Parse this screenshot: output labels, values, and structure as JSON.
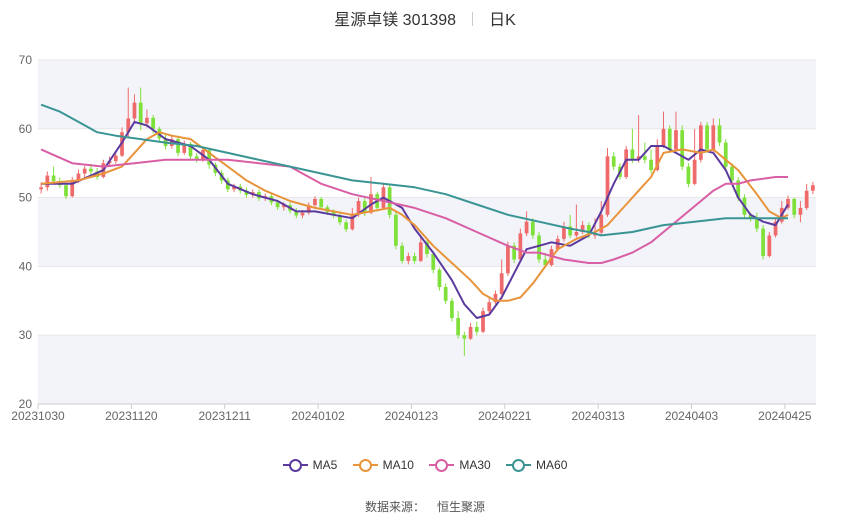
{
  "title": {
    "name": "星源卓镁 301398",
    "period": "日K"
  },
  "source": {
    "label": "数据来源：",
    "provider": "恒生聚源"
  },
  "colors": {
    "up": "#ef6b6b",
    "down": "#7fe03a",
    "MA5": "#5b3a9e",
    "MA10": "#e8943a",
    "MA30": "#d85ea5",
    "MA60": "#3a9494",
    "band": "#f3f4fa",
    "grid": "#e6e6e6"
  },
  "chart_data": {
    "type": "candlestick",
    "ylim": [
      20,
      70
    ],
    "yticks": [
      20,
      30,
      40,
      50,
      60,
      70
    ],
    "xticks": [
      "20231030",
      "20231120",
      "20231211",
      "20240102",
      "20240123",
      "20240221",
      "20240313",
      "20240403",
      "20240425"
    ],
    "xtick_index": [
      0,
      15,
      30,
      45,
      60,
      75,
      90,
      105,
      120
    ],
    "legend": [
      "MA5",
      "MA10",
      "MA30",
      "MA60"
    ],
    "legend_position": "bottom",
    "candles": [
      [
        51.2,
        51.5,
        50.6,
        52.2
      ],
      [
        51.5,
        53.2,
        51.0,
        53.8
      ],
      [
        53.2,
        52.4,
        52.0,
        54.5
      ],
      [
        52.4,
        51.8,
        51.4,
        52.9
      ],
      [
        51.8,
        50.2,
        49.8,
        52.0
      ],
      [
        50.2,
        52.5,
        50.0,
        53.0
      ],
      [
        52.5,
        53.5,
        52.1,
        54.1
      ],
      [
        53.5,
        54.2,
        52.9,
        54.6
      ],
      [
        54.2,
        53.8,
        53.3,
        54.9
      ],
      [
        53.8,
        53.0,
        52.6,
        54.3
      ],
      [
        53.0,
        55.0,
        52.8,
        55.5
      ],
      [
        55.0,
        55.3,
        54.6,
        56.0
      ],
      [
        55.3,
        56.1,
        54.9,
        56.6
      ],
      [
        56.1,
        59.5,
        55.9,
        60.2
      ],
      [
        59.5,
        61.5,
        58.6,
        66.0
      ],
      [
        61.5,
        63.8,
        61.0,
        65.0
      ],
      [
        63.8,
        60.8,
        59.8,
        66.0
      ],
      [
        60.8,
        61.6,
        60.2,
        62.8
      ],
      [
        61.6,
        60.0,
        59.3,
        62.0
      ],
      [
        60.0,
        58.6,
        58.0,
        60.3
      ],
      [
        58.6,
        57.5,
        57.0,
        59.1
      ],
      [
        57.5,
        58.5,
        57.1,
        59.0
      ],
      [
        58.5,
        56.5,
        56.0,
        59.0
      ],
      [
        56.5,
        57.8,
        56.2,
        58.3
      ],
      [
        57.8,
        56.0,
        55.5,
        58.1
      ],
      [
        56.0,
        55.6,
        55.1,
        56.5
      ],
      [
        55.6,
        56.9,
        55.2,
        57.4
      ],
      [
        56.9,
        54.8,
        54.2,
        57.0
      ],
      [
        54.8,
        53.6,
        53.1,
        55.1
      ],
      [
        53.6,
        52.5,
        52.0,
        54.0
      ],
      [
        52.5,
        51.2,
        50.8,
        52.9
      ],
      [
        51.2,
        51.6,
        50.8,
        52.0
      ],
      [
        51.6,
        51.0,
        50.6,
        52.0
      ],
      [
        51.0,
        50.4,
        50.0,
        51.5
      ],
      [
        50.4,
        50.8,
        50.0,
        51.2
      ],
      [
        50.8,
        49.9,
        49.5,
        51.2
      ],
      [
        49.9,
        50.2,
        49.5,
        50.6
      ],
      [
        50.2,
        49.3,
        48.9,
        50.6
      ],
      [
        49.3,
        48.6,
        48.2,
        49.6
      ],
      [
        48.6,
        48.9,
        48.1,
        49.3
      ],
      [
        48.9,
        48.1,
        47.7,
        49.3
      ],
      [
        48.1,
        47.4,
        47.0,
        48.5
      ],
      [
        47.4,
        47.8,
        47.0,
        48.2
      ],
      [
        47.8,
        48.9,
        47.5,
        49.3
      ],
      [
        48.9,
        49.8,
        48.6,
        50.2
      ],
      [
        49.8,
        48.6,
        48.2,
        50.1
      ],
      [
        48.6,
        47.9,
        47.5,
        48.9
      ],
      [
        47.9,
        47.4,
        47.0,
        48.3
      ],
      [
        47.4,
        46.4,
        46.0,
        47.7
      ],
      [
        46.4,
        45.4,
        45.0,
        46.8
      ],
      [
        45.4,
        47.5,
        45.2,
        48.5
      ],
      [
        47.5,
        49.5,
        47.2,
        50.0
      ],
      [
        49.5,
        47.8,
        47.3,
        49.9
      ],
      [
        47.8,
        50.5,
        47.6,
        53.0
      ],
      [
        50.5,
        48.5,
        48.0,
        50.8
      ],
      [
        48.5,
        51.5,
        48.2,
        52.0
      ],
      [
        51.5,
        47.5,
        47.0,
        51.8
      ],
      [
        47.5,
        43.0,
        42.5,
        48.0
      ],
      [
        43.0,
        40.8,
        40.4,
        43.5
      ],
      [
        40.8,
        41.5,
        40.3,
        42.0
      ],
      [
        41.5,
        40.8,
        40.4,
        42.0
      ],
      [
        40.8,
        43.5,
        40.6,
        44.5
      ],
      [
        43.5,
        41.8,
        41.3,
        44.0
      ],
      [
        41.8,
        39.5,
        39.0,
        42.2
      ],
      [
        39.5,
        37.0,
        36.5,
        39.8
      ],
      [
        37.0,
        35.0,
        34.5,
        37.5
      ],
      [
        35.0,
        32.5,
        32.0,
        35.4
      ],
      [
        32.5,
        30.0,
        29.5,
        33.5
      ],
      [
        30.0,
        29.5,
        27.0,
        30.5
      ],
      [
        29.5,
        31.2,
        29.3,
        31.8
      ],
      [
        31.2,
        30.5,
        30.0,
        32.0
      ],
      [
        30.5,
        33.5,
        30.3,
        34.0
      ],
      [
        33.5,
        34.8,
        33.2,
        35.5
      ],
      [
        34.8,
        36.0,
        34.5,
        36.5
      ],
      [
        36.0,
        39.0,
        35.8,
        41.0
      ],
      [
        39.0,
        43.0,
        38.6,
        43.6
      ],
      [
        43.0,
        41.0,
        40.5,
        43.5
      ],
      [
        41.0,
        44.8,
        40.8,
        45.5
      ],
      [
        44.8,
        46.5,
        44.4,
        48.0
      ],
      [
        46.5,
        44.5,
        44.0,
        47.0
      ],
      [
        44.5,
        41.0,
        40.5,
        45.0
      ],
      [
        41.0,
        40.2,
        39.8,
        42.0
      ],
      [
        40.2,
        42.5,
        40.0,
        43.0
      ],
      [
        42.5,
        44.0,
        42.2,
        44.5
      ],
      [
        44.0,
        45.8,
        43.6,
        46.5
      ],
      [
        45.8,
        44.5,
        44.1,
        47.5
      ],
      [
        44.5,
        45.0,
        44.2,
        49.0
      ],
      [
        45.0,
        46.0,
        44.7,
        46.6
      ],
      [
        46.0,
        44.5,
        44.1,
        46.4
      ],
      [
        44.5,
        44.9,
        44.0,
        47.0
      ],
      [
        44.9,
        47.5,
        44.6,
        49.5
      ],
      [
        47.5,
        56.0,
        47.2,
        57.2
      ],
      [
        56.0,
        54.5,
        54.0,
        56.6
      ],
      [
        54.5,
        53.0,
        52.6,
        55.0
      ],
      [
        53.0,
        57.0,
        52.7,
        57.5
      ],
      [
        57.0,
        55.5,
        55.0,
        60.0
      ],
      [
        55.5,
        56.0,
        55.1,
        62.0
      ],
      [
        56.0,
        55.5,
        55.0,
        58.0
      ],
      [
        55.5,
        54.0,
        53.5,
        57.0
      ],
      [
        54.0,
        57.5,
        53.8,
        58.5
      ],
      [
        57.5,
        60.0,
        57.2,
        62.5
      ],
      [
        60.0,
        57.0,
        56.5,
        60.5
      ],
      [
        57.0,
        59.8,
        56.7,
        62.5
      ],
      [
        59.8,
        54.5,
        54.0,
        60.5
      ],
      [
        54.5,
        52.0,
        51.5,
        55.0
      ],
      [
        52.0,
        55.5,
        51.8,
        60.0
      ],
      [
        55.5,
        60.5,
        55.1,
        61.0
      ],
      [
        60.5,
        57.0,
        56.5,
        61.0
      ],
      [
        57.0,
        60.5,
        56.6,
        61.5
      ],
      [
        60.5,
        58.0,
        57.5,
        61.5
      ],
      [
        58.0,
        54.5,
        54.0,
        58.5
      ],
      [
        54.5,
        52.5,
        52.0,
        55.0
      ],
      [
        52.5,
        50.0,
        49.5,
        53.0
      ],
      [
        50.0,
        47.5,
        47.0,
        50.5
      ],
      [
        47.5,
        47.0,
        46.5,
        47.8
      ],
      [
        47.0,
        45.5,
        45.0,
        47.8
      ],
      [
        45.5,
        41.5,
        41.0,
        46.0
      ],
      [
        41.5,
        44.5,
        41.3,
        45.0
      ],
      [
        44.5,
        46.5,
        44.2,
        47.0
      ],
      [
        46.5,
        48.5,
        46.2,
        49.5
      ],
      [
        48.5,
        49.8,
        48.2,
        50.3
      ],
      [
        49.8,
        47.5,
        47.0,
        50.0
      ],
      [
        47.5,
        48.5,
        46.4,
        49.5
      ],
      [
        48.5,
        51.0,
        48.2,
        52.0
      ],
      [
        51.0,
        51.8,
        50.5,
        52.3
      ]
    ],
    "series": [
      {
        "name": "MA5",
        "points": [
          [
            0,
            52.0
          ],
          [
            5,
            52.0
          ],
          [
            10,
            54.0
          ],
          [
            13,
            58.0
          ],
          [
            15,
            61.0
          ],
          [
            17,
            60.5
          ],
          [
            20,
            58.5
          ],
          [
            24,
            57.5
          ],
          [
            27,
            55.5
          ],
          [
            30,
            52.0
          ],
          [
            34,
            50.5
          ],
          [
            38,
            49.5
          ],
          [
            41,
            48.0
          ],
          [
            44,
            48.0
          ],
          [
            47,
            47.5
          ],
          [
            50,
            47.0
          ],
          [
            53,
            49.0
          ],
          [
            55,
            50.0
          ],
          [
            58,
            48.5
          ],
          [
            60,
            45.5
          ],
          [
            63,
            42.0
          ],
          [
            66,
            38.0
          ],
          [
            68,
            34.5
          ],
          [
            70,
            32.5
          ],
          [
            72,
            33.0
          ],
          [
            74,
            35.5
          ],
          [
            76,
            39.0
          ],
          [
            78,
            42.5
          ],
          [
            80,
            43.0
          ],
          [
            82,
            43.5
          ],
          [
            85,
            43.0
          ],
          [
            88,
            44.5
          ],
          [
            90,
            48.0
          ],
          [
            92,
            52.0
          ],
          [
            94,
            55.5
          ],
          [
            96,
            55.5
          ],
          [
            98,
            57.5
          ],
          [
            100,
            57.5
          ],
          [
            102,
            56.5
          ],
          [
            104,
            55.5
          ],
          [
            106,
            57.0
          ],
          [
            108,
            56.5
          ],
          [
            110,
            54.0
          ],
          [
            112,
            50.0
          ],
          [
            114,
            47.5
          ],
          [
            116,
            46.5
          ],
          [
            118,
            46.0
          ],
          [
            120,
            49.0
          ]
        ]
      },
      {
        "name": "MA10",
        "points": [
          [
            0,
            52.0
          ],
          [
            6,
            52.5
          ],
          [
            10,
            53.5
          ],
          [
            13,
            54.5
          ],
          [
            15,
            56.5
          ],
          [
            17,
            58.5
          ],
          [
            19,
            59.5
          ],
          [
            21,
            59.0
          ],
          [
            24,
            58.5
          ],
          [
            27,
            56.5
          ],
          [
            30,
            54.5
          ],
          [
            33,
            52.5
          ],
          [
            36,
            51.0
          ],
          [
            40,
            49.5
          ],
          [
            44,
            48.5
          ],
          [
            47,
            48.0
          ],
          [
            50,
            47.5
          ],
          [
            53,
            48.0
          ],
          [
            56,
            48.5
          ],
          [
            58,
            47.5
          ],
          [
            60,
            46.0
          ],
          [
            63,
            43.0
          ],
          [
            66,
            40.5
          ],
          [
            69,
            38.0
          ],
          [
            71,
            36.0
          ],
          [
            73,
            35.0
          ],
          [
            75,
            35.0
          ],
          [
            77,
            35.5
          ],
          [
            79,
            37.5
          ],
          [
            81,
            40.0
          ],
          [
            83,
            42.5
          ],
          [
            86,
            44.0
          ],
          [
            89,
            45.0
          ],
          [
            91,
            46.0
          ],
          [
            94,
            49.0
          ],
          [
            96,
            51.0
          ],
          [
            98,
            53.0
          ],
          [
            100,
            56.5
          ],
          [
            103,
            57.0
          ],
          [
            106,
            56.5
          ],
          [
            108,
            57.0
          ],
          [
            110,
            55.5
          ],
          [
            112,
            54.0
          ],
          [
            115,
            50.5
          ],
          [
            117,
            48.0
          ],
          [
            119,
            47.0
          ],
          [
            120,
            47.5
          ]
        ]
      },
      {
        "name": "MA30",
        "points": [
          [
            0,
            57.0
          ],
          [
            5,
            55.0
          ],
          [
            10,
            54.5
          ],
          [
            15,
            55.0
          ],
          [
            20,
            55.5
          ],
          [
            25,
            55.5
          ],
          [
            30,
            55.5
          ],
          [
            35,
            55.0
          ],
          [
            40,
            54.5
          ],
          [
            42,
            53.5
          ],
          [
            45,
            52.0
          ],
          [
            50,
            50.5
          ],
          [
            55,
            49.5
          ],
          [
            60,
            48.5
          ],
          [
            65,
            47.0
          ],
          [
            70,
            45.0
          ],
          [
            75,
            43.0
          ],
          [
            78,
            42.0
          ],
          [
            80,
            42.0
          ],
          [
            84,
            41.0
          ],
          [
            88,
            40.5
          ],
          [
            90,
            40.5
          ],
          [
            92,
            41.0
          ],
          [
            95,
            42.0
          ],
          [
            98,
            43.5
          ],
          [
            100,
            45.0
          ],
          [
            102,
            46.5
          ],
          [
            104,
            48.0
          ],
          [
            106,
            49.5
          ],
          [
            108,
            51.0
          ],
          [
            110,
            52.0
          ],
          [
            112,
            52.0
          ],
          [
            114,
            52.5
          ],
          [
            118,
            53.0
          ],
          [
            120,
            53.0
          ]
        ]
      },
      {
        "name": "MA60",
        "points": [
          [
            0,
            63.5
          ],
          [
            3,
            62.5
          ],
          [
            6,
            61.0
          ],
          [
            9,
            59.5
          ],
          [
            12,
            59.0
          ],
          [
            16,
            58.5
          ],
          [
            20,
            58.0
          ],
          [
            25,
            57.5
          ],
          [
            30,
            56.5
          ],
          [
            35,
            55.5
          ],
          [
            40,
            54.5
          ],
          [
            45,
            53.5
          ],
          [
            50,
            52.5
          ],
          [
            55,
            52.0
          ],
          [
            60,
            51.5
          ],
          [
            65,
            50.5
          ],
          [
            70,
            49.0
          ],
          [
            75,
            47.5
          ],
          [
            80,
            46.5
          ],
          [
            85,
            45.5
          ],
          [
            88,
            45.0
          ],
          [
            90,
            44.5
          ],
          [
            95,
            45.0
          ],
          [
            100,
            46.0
          ],
          [
            105,
            46.5
          ],
          [
            110,
            47.0
          ],
          [
            115,
            47.0
          ],
          [
            120,
            47.0
          ]
        ]
      }
    ]
  }
}
